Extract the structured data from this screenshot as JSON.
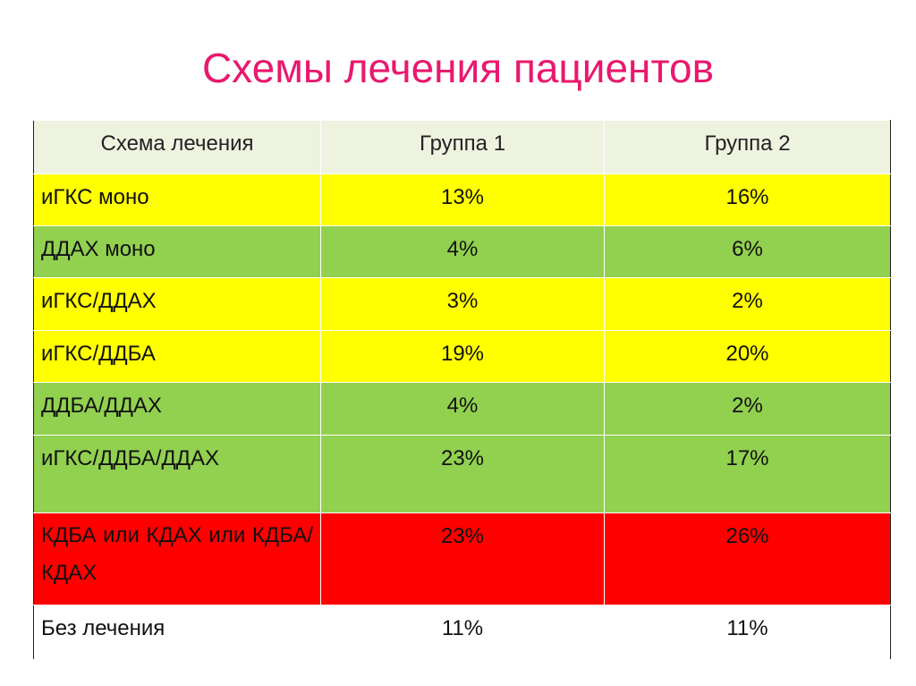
{
  "title": "Схемы лечения пациентов",
  "table": {
    "headers": [
      "Схема лечения",
      "Группа 1",
      "Группа 2"
    ],
    "rows": [
      {
        "scheme": "иГКС моно",
        "g1": "13%",
        "g2": "16%",
        "color": "#ffff00"
      },
      {
        "scheme": "ДДАХ моно",
        "g1": "4%",
        "g2": "6%",
        "color": "#92d050"
      },
      {
        "scheme": "иГКС/ДДАХ",
        "g1": "3%",
        "g2": "2%",
        "color": "#ffff00"
      },
      {
        "scheme": "иГКС/ДДБА",
        "g1": "19%",
        "g2": "20%",
        "color": "#ffff00"
      },
      {
        "scheme": "ДДБА/ДДАХ",
        "g1": "4%",
        "g2": "2%",
        "color": "#92d050"
      },
      {
        "scheme": "иГКС/ДДБА/ДДАХ",
        "g1": "23%",
        "g2": "17%",
        "color": "#92d050"
      },
      {
        "scheme": "КДБА или КДАХ или КДБА/КДАХ",
        "g1": "23%",
        "g2": "26%",
        "color": "#ff0000"
      },
      {
        "scheme": "Без лечения",
        "g1": "11%",
        "g2": "11%",
        "color": "#ffffff"
      }
    ]
  },
  "colors": {
    "title": "#e8196e",
    "header_bg": "#eef3e0",
    "yellow": "#ffff00",
    "green": "#92d050",
    "red": "#ff0000"
  }
}
